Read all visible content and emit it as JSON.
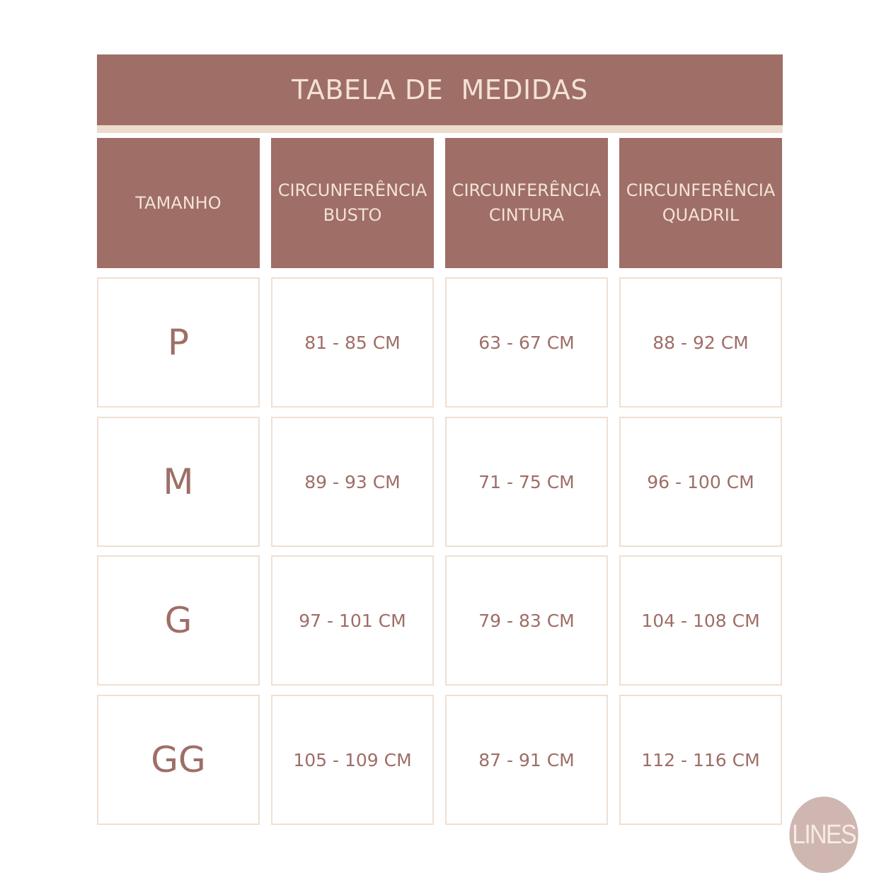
{
  "title": "TABELA DE  MEDIDAS",
  "headers": [
    "TAMANHO",
    "CIRCUNFERÊNCIA\nBUSTO",
    "CIRCUNFERÊNCIA\nCINTURA",
    "CIRCUNFERÊNCIA\nQUADRIL"
  ],
  "rows": [
    {
      "size": "P",
      "busto": "81 - 85 CM",
      "cintura": "63 - 67 CM",
      "quadril": "88 - 92 CM"
    },
    {
      "size": "M",
      "busto": "89 - 93 CM",
      "cintura": "71 - 75 CM",
      "quadril": "96 - 100 CM"
    },
    {
      "size": "G",
      "busto": "97 - 101 CM",
      "cintura": "79 - 83 CM",
      "quadril": "104 - 108 CM"
    },
    {
      "size": "GG",
      "busto": "105 - 109 CM",
      "cintura": "87 - 91 CM",
      "quadril": "112 - 116 CM"
    }
  ],
  "logo": "LINES",
  "colors": {
    "primary": "#9e6e67",
    "beige": "#ecdccd",
    "logo": "#cfb6b1"
  }
}
